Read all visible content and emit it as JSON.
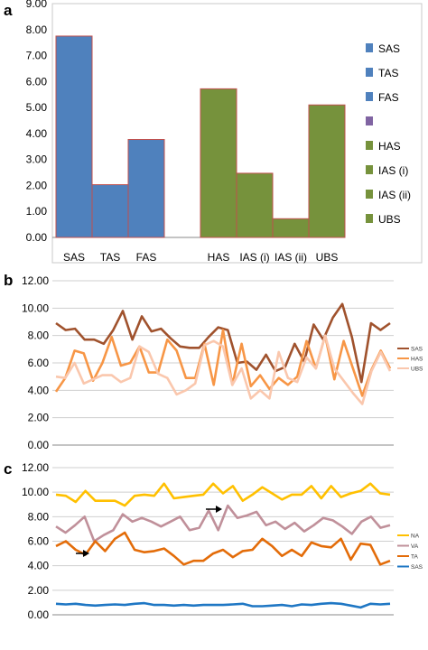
{
  "chart_data": [
    {
      "panel": "a",
      "type": "bar",
      "categories": [
        "SAS",
        "TAS",
        "FAS",
        "HAS",
        "IAS (i)",
        "IAS (ii)",
        "UBS"
      ],
      "values": [
        7.75,
        2.03,
        3.77,
        5.72,
        2.47,
        0.72,
        5.1
      ],
      "colors": [
        "#4f81bd",
        "#4f81bd",
        "#4f81bd",
        "#76923c",
        "#76923c",
        "#76923c",
        "#76923c"
      ],
      "bar_edge_color": "#c0504d",
      "y_ticks": [
        "0.00",
        "1.00",
        "2.00",
        "3.00",
        "4.00",
        "5.00",
        "6.00",
        "7.00",
        "8.00",
        "9.00"
      ],
      "ylim": [
        0,
        9
      ],
      "legend": [
        {
          "label": "SAS",
          "color": "#4f81bd"
        },
        {
          "label": "TAS",
          "color": "#4f81bd"
        },
        {
          "label": "FAS",
          "color": "#4f81bd"
        },
        {
          "label": "",
          "color": "#8064a2"
        },
        {
          "label": "HAS",
          "color": "#76923c"
        },
        {
          "label": "IAS (i)",
          "color": "#76923c"
        },
        {
          "label": "IAS (ii)",
          "color": "#76923c"
        },
        {
          "label": "UBS",
          "color": "#76923c"
        }
      ],
      "legend_position": "right",
      "grid": false
    },
    {
      "panel": "b",
      "type": "line",
      "y_ticks": [
        "0.00",
        "2.00",
        "4.00",
        "6.00",
        "8.00",
        "10.00",
        "12.00"
      ],
      "ylim": [
        0,
        12
      ],
      "grid": true,
      "legend_position": "right",
      "series": [
        {
          "name": "SAS",
          "color": "#a0522d",
          "values": [
            8.9,
            8.4,
            8.5,
            7.7,
            7.7,
            7.4,
            8.4,
            9.8,
            7.7,
            9.4,
            8.3,
            8.5,
            7.8,
            7.2,
            7.1,
            7.1,
            7.9,
            8.6,
            8.4,
            6.0,
            6.1,
            5.5,
            6.6,
            5.4,
            5.7,
            7.4,
            6.1,
            8.8,
            7.7,
            9.3,
            10.3,
            7.9,
            4.6,
            8.9,
            8.4,
            8.9
          ]
        },
        {
          "name": "HAS",
          "color": "#f79646",
          "values": [
            3.9,
            4.9,
            6.9,
            6.7,
            4.7,
            6.0,
            7.9,
            5.8,
            6.0,
            7.2,
            5.3,
            5.3,
            7.7,
            6.9,
            4.9,
            4.9,
            7.4,
            4.4,
            8.4,
            4.4,
            7.4,
            4.3,
            5.1,
            4.1,
            4.9,
            4.4,
            5.0,
            7.6,
            5.6,
            8.0,
            4.8,
            7.6,
            5.6,
            3.6,
            5.5,
            6.9,
            5.6
          ]
        },
        {
          "name": "UBS",
          "color": "#fac7ad",
          "values": [
            5.0,
            4.9,
            6.0,
            4.5,
            4.8,
            5.1,
            5.1,
            4.6,
            4.9,
            7.2,
            6.8,
            5.2,
            4.9,
            3.7,
            4.0,
            4.5,
            7.3,
            7.6,
            7.2,
            4.4,
            5.6,
            3.4,
            4.0,
            3.4,
            6.8,
            4.9,
            4.6,
            6.4,
            5.6,
            8.0,
            5.6,
            4.7,
            3.8,
            3.0,
            5.4,
            6.8,
            5.4
          ]
        }
      ]
    },
    {
      "panel": "c",
      "type": "line",
      "y_ticks": [
        "0.00",
        "2.00",
        "4.00",
        "6.00",
        "8.00",
        "10.00",
        "12.00"
      ],
      "ylim": [
        0,
        12
      ],
      "grid": true,
      "legend_position": "right",
      "series": [
        {
          "name": "NA",
          "color": "#ffc000",
          "values": [
            9.8,
            9.7,
            9.2,
            10.1,
            9.3,
            9.3,
            9.3,
            8.9,
            9.7,
            9.8,
            9.7,
            10.7,
            9.5,
            9.6,
            9.7,
            9.8,
            10.7,
            9.9,
            10.5,
            9.3,
            9.8,
            10.4,
            9.9,
            9.4,
            9.8,
            9.8,
            10.5,
            9.5,
            10.5,
            9.6,
            9.9,
            10.1,
            10.7,
            9.9,
            9.8
          ]
        },
        {
          "name": "VA",
          "color": "#c0909a",
          "values": [
            7.2,
            6.7,
            7.3,
            8.0,
            6.0,
            6.5,
            6.9,
            8.2,
            7.6,
            7.9,
            7.6,
            7.2,
            7.6,
            8.0,
            6.9,
            7.1,
            8.5,
            6.9,
            8.9,
            7.9,
            8.1,
            8.4,
            7.3,
            7.6,
            7.0,
            7.5,
            6.8,
            7.3,
            7.9,
            7.7,
            7.2,
            6.6,
            7.6,
            8.0,
            7.1,
            7.3
          ]
        },
        {
          "name": "TA",
          "color": "#e36c09",
          "values": [
            5.6,
            6.0,
            5.3,
            4.9,
            6.0,
            5.2,
            6.2,
            6.7,
            5.3,
            5.1,
            5.2,
            5.4,
            4.8,
            4.1,
            4.4,
            4.4,
            5.0,
            5.3,
            4.7,
            5.2,
            5.3,
            6.2,
            5.6,
            4.8,
            5.3,
            4.8,
            5.9,
            5.6,
            5.5,
            6.2,
            4.5,
            5.8,
            5.7,
            4.1,
            4.4
          ]
        },
        {
          "name": "SAS",
          "color": "#1f77c4",
          "values": [
            0.9,
            0.85,
            0.9,
            0.8,
            0.75,
            0.8,
            0.85,
            0.8,
            0.9,
            0.95,
            0.8,
            0.8,
            0.75,
            0.8,
            0.75,
            0.8,
            0.8,
            0.8,
            0.85,
            0.9,
            0.7,
            0.7,
            0.75,
            0.8,
            0.7,
            0.85,
            0.8,
            0.9,
            0.95,
            0.9,
            0.75,
            0.6,
            0.9,
            0.85,
            0.9
          ]
        }
      ]
    }
  ]
}
